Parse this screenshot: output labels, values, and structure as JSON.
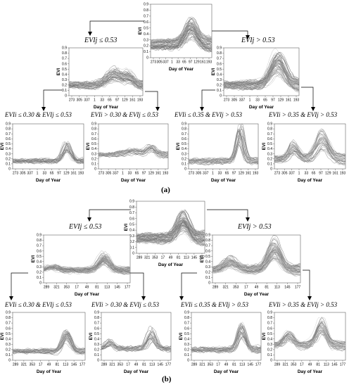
{
  "panels": [
    {
      "tag": "(a)"
    },
    {
      "tag": "(b)"
    }
  ],
  "chart_data": [
    {
      "id": "a-root",
      "type": "line",
      "title": "",
      "xlabel": "Day of Year",
      "ylabel": "EVI",
      "xticks": [
        "273",
        "305",
        "337",
        "1",
        "33",
        "65",
        "97",
        "129",
        "161",
        "193"
      ],
      "ylim": [
        0,
        0.9
      ],
      "yticks": [
        "0",
        "0.1",
        "0.2",
        "0.3",
        "0.4",
        "0.5",
        "0.6",
        "0.7",
        "0.8",
        "0.9"
      ],
      "profile": {
        "base": 0.22,
        "peaks": [
          {
            "x": 0.66,
            "amp": 0.28,
            "w": 0.14
          }
        ]
      },
      "n_lines": 70,
      "spread": 0.12
    },
    {
      "id": "a-low",
      "type": "line",
      "title": "EVIj ≤ 0.53",
      "xlabel": "Day of Year",
      "ylabel": "EVI",
      "xticks": [
        "273",
        "305",
        "337",
        "1",
        "33",
        "65",
        "97",
        "129",
        "161",
        "193"
      ],
      "ylim": [
        0,
        0.9
      ],
      "yticks": [
        "0",
        "0.1",
        "0.2",
        "0.3",
        "0.4",
        "0.5",
        "0.6",
        "0.7",
        "0.8",
        "0.9"
      ],
      "profile": {
        "base": 0.2,
        "peaks": [
          {
            "x": 0.62,
            "amp": 0.2,
            "w": 0.15
          },
          {
            "x": 0.82,
            "amp": 0.12,
            "w": 0.08
          }
        ]
      },
      "n_lines": 55,
      "spread": 0.08
    },
    {
      "id": "a-high",
      "type": "line",
      "title": "EVIj > 0.53",
      "xlabel": "Day of Year",
      "ylabel": "EVI",
      "xticks": [
        "273",
        "305",
        "337",
        "1",
        "33",
        "65",
        "97",
        "129",
        "161",
        "193"
      ],
      "ylim": [
        0,
        0.9
      ],
      "yticks": [
        "0",
        "0.1",
        "0.2",
        "0.3",
        "0.4",
        "0.5",
        "0.6",
        "0.7",
        "0.8",
        "0.9"
      ],
      "profile": {
        "base": 0.2,
        "peaks": [
          {
            "x": 0.72,
            "amp": 0.42,
            "w": 0.13
          }
        ]
      },
      "n_lines": 60,
      "spread": 0.12
    },
    {
      "id": "a-ll",
      "type": "line",
      "title": "EVIi ≤ 0.30 & EVIj ≤ 0.53",
      "xlabel": "Day of Year",
      "ylabel": "EVI",
      "xticks": [
        "273",
        "305",
        "337",
        "1",
        "33",
        "65",
        "97",
        "129",
        "161",
        "193"
      ],
      "ylim": [
        0,
        0.9
      ],
      "yticks": [
        "0",
        "0.1",
        "0.2",
        "0.3",
        "0.4",
        "0.5",
        "0.6",
        "0.7",
        "0.8",
        "0.9"
      ],
      "profile": {
        "base": 0.16,
        "peaks": [
          {
            "x": 0.76,
            "amp": 0.28,
            "w": 0.08
          }
        ]
      },
      "n_lines": 30,
      "spread": 0.05
    },
    {
      "id": "a-lh",
      "type": "line",
      "title": "EVIi > 0.30 & EVIj ≤ 0.53",
      "xlabel": "Day of Year",
      "ylabel": "EVI",
      "xticks": [
        "273",
        "305",
        "337",
        "1",
        "33",
        "65",
        "97",
        "129",
        "161",
        "193"
      ],
      "ylim": [
        0,
        0.9
      ],
      "yticks": [
        "0",
        "0.1",
        "0.2",
        "0.3",
        "0.4",
        "0.5",
        "0.6",
        "0.7",
        "0.8",
        "0.9"
      ],
      "profile": {
        "base": 0.28,
        "peaks": [
          {
            "x": 0.5,
            "amp": 0.08,
            "w": 0.2
          },
          {
            "x": 0.76,
            "amp": 0.14,
            "w": 0.08
          }
        ]
      },
      "n_lines": 30,
      "spread": 0.06
    },
    {
      "id": "a-hl",
      "type": "line",
      "title": "EVIi ≤ 0.35 & EVIj > 0.53",
      "xlabel": "Day of Year",
      "ylabel": "EVI",
      "xticks": [
        "273",
        "305",
        "337",
        "1",
        "33",
        "65",
        "97",
        "129",
        "161",
        "193"
      ],
      "ylim": [
        0,
        0.9
      ],
      "yticks": [
        "0",
        "0.1",
        "0.2",
        "0.3",
        "0.4",
        "0.5",
        "0.6",
        "0.7",
        "0.8",
        "0.9"
      ],
      "profile": {
        "base": 0.15,
        "peaks": [
          {
            "x": 0.74,
            "amp": 0.55,
            "w": 0.07
          }
        ]
      },
      "n_lines": 30,
      "spread": 0.07
    },
    {
      "id": "a-hh",
      "type": "line",
      "title": "EVIi > 0.35 & EVIj > 0.53",
      "xlabel": "Day of Year",
      "ylabel": "EVI",
      "xticks": [
        "273",
        "305",
        "337",
        "1",
        "33",
        "65",
        "97",
        "129",
        "161",
        "193"
      ],
      "ylim": [
        0,
        0.9
      ],
      "yticks": [
        "0",
        "0.1",
        "0.2",
        "0.3",
        "0.4",
        "0.5",
        "0.6",
        "0.7",
        "0.8",
        "0.9"
      ],
      "profile": {
        "base": 0.2,
        "peaks": [
          {
            "x": 0.28,
            "amp": 0.22,
            "w": 0.09
          },
          {
            "x": 0.68,
            "amp": 0.38,
            "w": 0.12
          }
        ]
      },
      "n_lines": 35,
      "spread": 0.1
    },
    {
      "id": "b-root",
      "type": "line",
      "title": "",
      "xlabel": "Day of Year",
      "ylabel": "EVI",
      "xticks": [
        "289",
        "321",
        "353",
        "17",
        "49",
        "81",
        "113",
        "145",
        "177"
      ],
      "ylim": [
        0,
        0.9
      ],
      "yticks": [
        "0",
        "0.1",
        "0.2",
        "0.3",
        "0.4",
        "0.5",
        "0.6",
        "0.7",
        "0.8",
        "0.9"
      ],
      "profile": {
        "base": 0.26,
        "peaks": [
          {
            "x": 0.68,
            "amp": 0.3,
            "w": 0.12
          }
        ]
      },
      "n_lines": 80,
      "spread": 0.12
    },
    {
      "id": "b-low",
      "type": "line",
      "title": "EVIj ≤ 0.53",
      "xlabel": "Day of Year",
      "ylabel": "EVI",
      "xticks": [
        "289",
        "321",
        "353",
        "17",
        "49",
        "81",
        "113",
        "145",
        "177"
      ],
      "ylim": [
        0,
        0.9
      ],
      "yticks": [
        "0",
        "0.1",
        "0.2",
        "0.3",
        "0.4",
        "0.5",
        "0.6",
        "0.7",
        "0.8",
        "0.9"
      ],
      "profile": {
        "base": 0.24,
        "peaks": [
          {
            "x": 0.1,
            "amp": 0.06,
            "w": 0.1
          },
          {
            "x": 0.7,
            "amp": 0.22,
            "w": 0.09
          }
        ]
      },
      "n_lines": 60,
      "spread": 0.06
    },
    {
      "id": "b-high",
      "type": "line",
      "title": "EVIj > 0.53",
      "xlabel": "Day of Year",
      "ylabel": "EVI",
      "xticks": [
        "289",
        "321",
        "353",
        "17",
        "49",
        "81",
        "113",
        "145",
        "177"
      ],
      "ylim": [
        0,
        0.9
      ],
      "yticks": [
        "0",
        "0.1",
        "0.2",
        "0.3",
        "0.4",
        "0.5",
        "0.6",
        "0.7",
        "0.8",
        "0.9"
      ],
      "profile": {
        "base": 0.24,
        "peaks": [
          {
            "x": 0.2,
            "amp": 0.16,
            "w": 0.1
          },
          {
            "x": 0.7,
            "amp": 0.4,
            "w": 0.1
          }
        ]
      },
      "n_lines": 60,
      "spread": 0.12
    },
    {
      "id": "b-ll",
      "type": "line",
      "title": "EVIi ≤ 0.30 & EVIj ≤ 0.53",
      "xlabel": "Day of Year",
      "ylabel": "EVI",
      "xticks": [
        "289",
        "321",
        "353",
        "17",
        "49",
        "81",
        "113",
        "145",
        "177"
      ],
      "ylim": [
        0,
        0.9
      ],
      "yticks": [
        "0",
        "0.1",
        "0.2",
        "0.3",
        "0.4",
        "0.5",
        "0.6",
        "0.7",
        "0.8",
        "0.9"
      ],
      "profile": {
        "base": 0.17,
        "peaks": [
          {
            "x": 0.74,
            "amp": 0.3,
            "w": 0.08
          }
        ]
      },
      "n_lines": 35,
      "spread": 0.05
    },
    {
      "id": "b-lh",
      "type": "line",
      "title": "EVIi > 0.30 & EVIj ≤ 0.53",
      "xlabel": "Day of Year",
      "ylabel": "EVI",
      "xticks": [
        "289",
        "321",
        "353",
        "17",
        "49",
        "81",
        "113",
        "145",
        "177"
      ],
      "ylim": [
        0,
        0.9
      ],
      "yticks": [
        "0",
        "0.1",
        "0.2",
        "0.3",
        "0.4",
        "0.5",
        "0.6",
        "0.7",
        "0.8",
        "0.9"
      ],
      "profile": {
        "base": 0.22,
        "peaks": [
          {
            "x": 0.12,
            "amp": 0.12,
            "w": 0.08
          },
          {
            "x": 0.72,
            "amp": 0.28,
            "w": 0.08
          }
        ]
      },
      "n_lines": 30,
      "spread": 0.05
    },
    {
      "id": "b-hl",
      "type": "line",
      "title": "EVIi ≤ 0.35 & EVIj > 0.53",
      "xlabel": "Day of Year",
      "ylabel": "EVI",
      "xticks": [
        "289",
        "321",
        "353",
        "17",
        "49",
        "81",
        "113",
        "145",
        "177"
      ],
      "ylim": [
        0,
        0.9
      ],
      "yticks": [
        "0",
        "0.1",
        "0.2",
        "0.3",
        "0.4",
        "0.5",
        "0.6",
        "0.7",
        "0.8",
        "0.9"
      ],
      "profile": {
        "base": 0.2,
        "peaks": [
          {
            "x": 0.72,
            "amp": 0.4,
            "w": 0.08
          }
        ]
      },
      "n_lines": 35,
      "spread": 0.06
    },
    {
      "id": "b-hh",
      "type": "line",
      "title": "EVIi > 0.35 & EVIj > 0.53",
      "xlabel": "Day of Year",
      "ylabel": "EVI",
      "xticks": [
        "289",
        "321",
        "353",
        "17",
        "49",
        "81",
        "113",
        "145",
        "177"
      ],
      "ylim": [
        0,
        0.9
      ],
      "yticks": [
        "0",
        "0.1",
        "0.2",
        "0.3",
        "0.4",
        "0.5",
        "0.6",
        "0.7",
        "0.8",
        "0.9"
      ],
      "profile": {
        "base": 0.28,
        "peaks": [
          {
            "x": 0.2,
            "amp": 0.18,
            "w": 0.1
          },
          {
            "x": 0.66,
            "amp": 0.36,
            "w": 0.1
          }
        ]
      },
      "n_lines": 40,
      "spread": 0.08
    }
  ]
}
